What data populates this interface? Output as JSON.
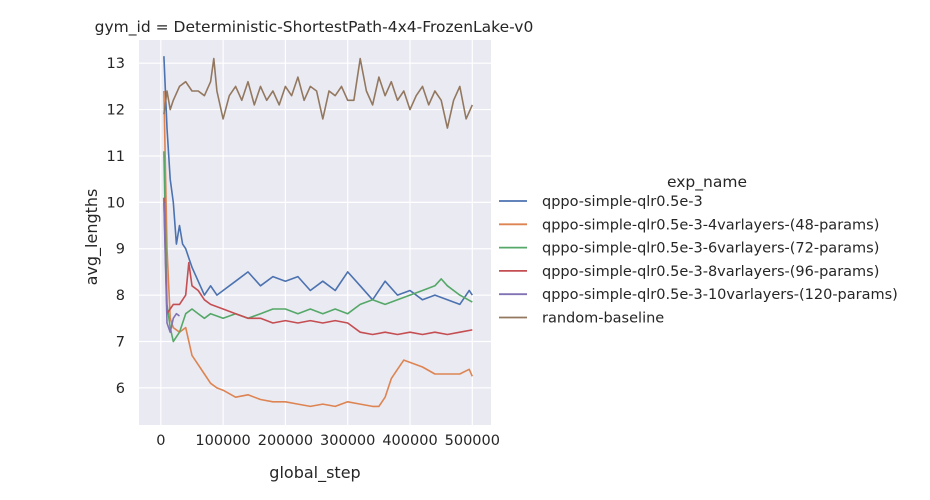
{
  "chart_data": {
    "type": "line",
    "title": "gym_id = Deterministic-ShortestPath-4x4-FrozenLake-v0",
    "xlabel": "global_step",
    "ylabel": "avg_lengths",
    "xlim": [
      -35000,
      530000
    ],
    "ylim": [
      5.2,
      13.5
    ],
    "xticks": [
      0,
      100000,
      200000,
      300000,
      400000,
      500000
    ],
    "xtick_labels": [
      "0",
      "100000",
      "200000",
      "300000",
      "400000",
      "500000"
    ],
    "yticks": [
      6,
      7,
      8,
      9,
      10,
      11,
      12,
      13
    ],
    "ytick_labels": [
      "6",
      "7",
      "8",
      "9",
      "10",
      "11",
      "12",
      "13"
    ],
    "grid": true,
    "legend_title": "exp_name",
    "legend_placement": "right",
    "series": [
      {
        "name": "qppo-simple-qlr0.5e-3",
        "color": "#4c72b0",
        "x": [
          5000,
          10000,
          15000,
          20000,
          25000,
          30000,
          35000,
          40000,
          45000,
          50000,
          60000,
          70000,
          80000,
          90000,
          100000,
          120000,
          140000,
          160000,
          180000,
          200000,
          220000,
          240000,
          260000,
          280000,
          300000,
          320000,
          340000,
          360000,
          380000,
          400000,
          420000,
          440000,
          460000,
          480000,
          495000,
          500000
        ],
        "y": [
          13.15,
          11.6,
          10.5,
          10.0,
          9.1,
          9.5,
          9.1,
          9.0,
          8.8,
          8.6,
          8.3,
          8.0,
          8.2,
          8.0,
          8.1,
          8.3,
          8.5,
          8.2,
          8.4,
          8.3,
          8.4,
          8.1,
          8.3,
          8.1,
          8.5,
          8.2,
          7.9,
          8.3,
          8.0,
          8.1,
          7.9,
          8.0,
          7.9,
          7.8,
          8.1,
          8.0
        ]
      },
      {
        "name": "qppo-simple-qlr0.5e-3-4varlayers-(48-params)",
        "color": "#dd8452",
        "x": [
          5000,
          10000,
          15000,
          20000,
          30000,
          40000,
          50000,
          60000,
          70000,
          80000,
          90000,
          100000,
          120000,
          140000,
          160000,
          180000,
          200000,
          220000,
          240000,
          260000,
          280000,
          300000,
          320000,
          340000,
          350000,
          360000,
          370000,
          380000,
          390000,
          400000,
          420000,
          440000,
          460000,
          480000,
          495000,
          500000
        ],
        "y": [
          12.4,
          9.0,
          7.5,
          7.3,
          7.2,
          7.3,
          6.7,
          6.5,
          6.3,
          6.1,
          6.0,
          5.95,
          5.8,
          5.85,
          5.75,
          5.7,
          5.7,
          5.65,
          5.6,
          5.65,
          5.6,
          5.7,
          5.65,
          5.6,
          5.6,
          5.8,
          6.2,
          6.4,
          6.6,
          6.55,
          6.45,
          6.3,
          6.3,
          6.3,
          6.4,
          6.25
        ]
      },
      {
        "name": "qppo-simple-qlr0.5e-3-6varlayers-(72-params)",
        "color": "#55a868",
        "x": [
          5000,
          10000,
          15000,
          20000,
          30000,
          40000,
          50000,
          60000,
          70000,
          80000,
          100000,
          120000,
          140000,
          160000,
          180000,
          200000,
          220000,
          240000,
          260000,
          280000,
          300000,
          320000,
          340000,
          360000,
          380000,
          400000,
          420000,
          440000,
          450000,
          460000,
          480000,
          500000
        ],
        "y": [
          11.1,
          7.8,
          7.3,
          7.0,
          7.2,
          7.6,
          7.7,
          7.6,
          7.5,
          7.6,
          7.5,
          7.6,
          7.5,
          7.6,
          7.7,
          7.7,
          7.6,
          7.7,
          7.6,
          7.7,
          7.6,
          7.8,
          7.9,
          7.8,
          7.9,
          8.0,
          8.1,
          8.2,
          8.35,
          8.2,
          8.0,
          7.85
        ]
      },
      {
        "name": "qppo-simple-qlr0.5e-3-8varlayers-(96-params)",
        "color": "#c44e52",
        "x": [
          5000,
          10000,
          15000,
          20000,
          30000,
          40000,
          45000,
          50000,
          60000,
          70000,
          80000,
          100000,
          120000,
          140000,
          160000,
          180000,
          200000,
          220000,
          240000,
          260000,
          280000,
          300000,
          320000,
          340000,
          360000,
          380000,
          400000,
          420000,
          440000,
          460000,
          480000,
          500000
        ],
        "y": [
          10.1,
          7.6,
          7.7,
          7.8,
          7.8,
          8.0,
          8.7,
          8.2,
          8.1,
          7.9,
          7.8,
          7.7,
          7.6,
          7.5,
          7.5,
          7.4,
          7.45,
          7.4,
          7.45,
          7.4,
          7.45,
          7.4,
          7.2,
          7.15,
          7.2,
          7.15,
          7.2,
          7.15,
          7.2,
          7.15,
          7.2,
          7.25
        ]
      },
      {
        "name": "qppo-simple-qlr0.5e-3-10varlayers-(120-params)",
        "color": "#8172b3",
        "x": [
          5000,
          10000,
          15000,
          20000,
          25000,
          30000
        ],
        "y": [
          10.0,
          7.4,
          7.2,
          7.5,
          7.6,
          7.55
        ]
      },
      {
        "name": "random-baseline",
        "color": "#937860",
        "x": [
          5000,
          10000,
          15000,
          20000,
          30000,
          40000,
          50000,
          60000,
          70000,
          80000,
          85000,
          90000,
          100000,
          110000,
          120000,
          130000,
          140000,
          150000,
          160000,
          170000,
          180000,
          190000,
          200000,
          210000,
          220000,
          230000,
          240000,
          250000,
          260000,
          270000,
          280000,
          290000,
          300000,
          310000,
          320000,
          330000,
          340000,
          350000,
          360000,
          370000,
          380000,
          390000,
          400000,
          410000,
          420000,
          430000,
          440000,
          450000,
          460000,
          470000,
          480000,
          490000,
          500000
        ],
        "y": [
          11.9,
          12.4,
          12.0,
          12.2,
          12.5,
          12.6,
          12.4,
          12.4,
          12.3,
          12.6,
          13.1,
          12.4,
          11.8,
          12.3,
          12.5,
          12.2,
          12.6,
          12.1,
          12.5,
          12.2,
          12.4,
          12.1,
          12.5,
          12.3,
          12.7,
          12.2,
          12.5,
          12.4,
          11.8,
          12.4,
          12.3,
          12.5,
          12.2,
          12.2,
          13.1,
          12.4,
          12.1,
          12.7,
          12.3,
          12.6,
          12.2,
          12.4,
          12.0,
          12.3,
          12.5,
          12.1,
          12.4,
          12.2,
          11.6,
          12.2,
          12.5,
          11.8,
          12.1
        ]
      }
    ]
  }
}
